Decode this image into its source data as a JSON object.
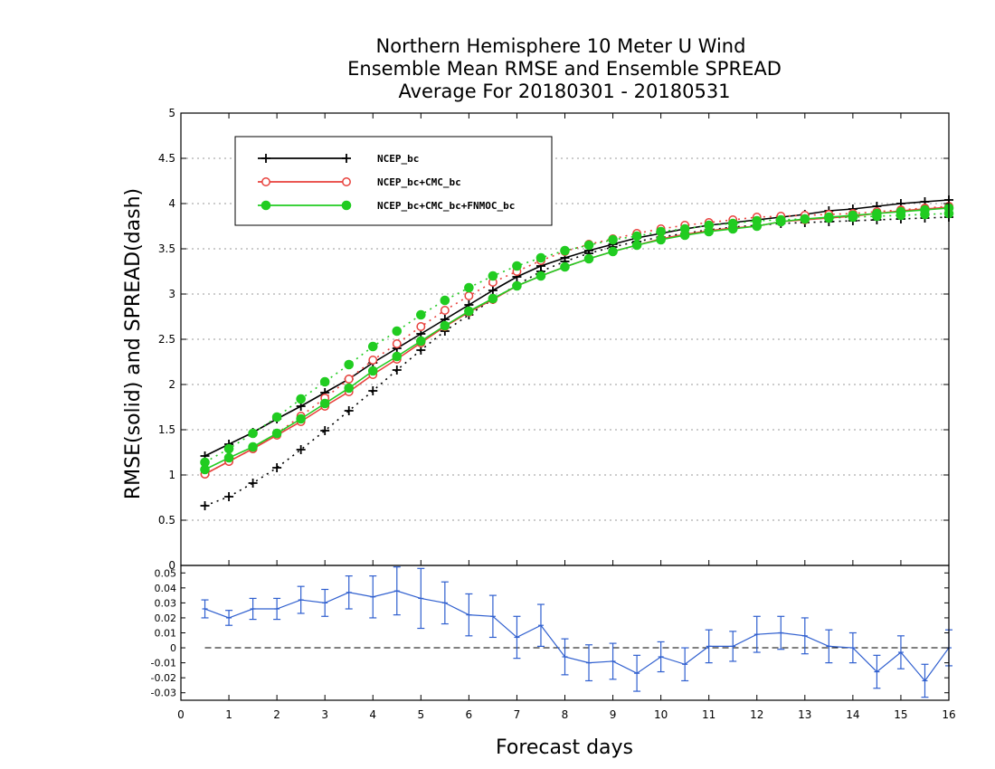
{
  "chart_data": [
    {
      "type": "line",
      "title": [
        "Northern Hemisphere 10 Meter U Wind",
        "Ensemble Mean RMSE and Ensemble SPREAD",
        "Average For 20180301 - 20180531"
      ],
      "ylabel": "RMSE(solid) and SPREAD(dash)",
      "xlabel": "Forecast days",
      "xlim": [
        0,
        16
      ],
      "ylim": [
        0,
        5
      ],
      "xticks": [
        "0",
        "1",
        "2",
        "3",
        "4",
        "5",
        "6",
        "7",
        "8",
        "9",
        "10",
        "11",
        "12",
        "13",
        "14",
        "15",
        "16"
      ],
      "yticks": [
        "0",
        "0.5",
        "1",
        "1.5",
        "2",
        "2.5",
        "3",
        "3.5",
        "4",
        "4.5",
        "5"
      ],
      "grid": true,
      "legend_position": "top-left",
      "x": [
        0.5,
        1,
        1.5,
        2,
        2.5,
        3,
        3.5,
        4,
        4.5,
        5,
        5.5,
        6,
        6.5,
        7,
        7.5,
        8,
        8.5,
        9,
        9.5,
        10,
        10.5,
        11,
        11.5,
        12,
        12.5,
        13,
        13.5,
        14,
        14.5,
        15,
        15.5,
        16
      ],
      "series": [
        {
          "name": "NCEP_bc",
          "color": "#000000",
          "marker": "plus",
          "rmse": [
            1.21,
            1.34,
            1.47,
            1.62,
            1.76,
            1.91,
            2.06,
            2.24,
            2.4,
            2.56,
            2.72,
            2.88,
            3.04,
            3.19,
            3.31,
            3.4,
            3.48,
            3.55,
            3.62,
            3.67,
            3.72,
            3.76,
            3.79,
            3.82,
            3.85,
            3.88,
            3.92,
            3.94,
            3.97,
            4.0,
            4.02,
            4.04
          ],
          "spread": [
            0.66,
            0.76,
            0.91,
            1.08,
            1.28,
            1.49,
            1.71,
            1.93,
            2.16,
            2.38,
            2.59,
            2.77,
            2.94,
            3.1,
            3.25,
            3.36,
            3.45,
            3.52,
            3.58,
            3.63,
            3.67,
            3.71,
            3.74,
            3.76,
            3.78,
            3.79,
            3.8,
            3.81,
            3.82,
            3.83,
            3.84,
            3.85
          ]
        },
        {
          "name": "NCEP_bc+CMC_bc",
          "color": "#e8413c",
          "marker": "circle-open",
          "rmse": [
            1.01,
            1.15,
            1.29,
            1.44,
            1.59,
            1.76,
            1.92,
            2.11,
            2.28,
            2.46,
            2.64,
            2.8,
            2.94,
            3.09,
            3.2,
            3.3,
            3.39,
            3.47,
            3.54,
            3.61,
            3.66,
            3.7,
            3.73,
            3.75,
            3.8,
            3.82,
            3.84,
            3.86,
            3.89,
            3.92,
            3.94,
            3.96
          ],
          "spread": [
            1.01,
            1.15,
            1.29,
            1.46,
            1.65,
            1.85,
            2.06,
            2.27,
            2.45,
            2.64,
            2.82,
            2.98,
            3.13,
            3.25,
            3.37,
            3.47,
            3.55,
            3.61,
            3.67,
            3.72,
            3.76,
            3.79,
            3.82,
            3.85,
            3.86,
            3.87,
            3.88,
            3.89,
            3.91,
            3.93,
            3.95,
            3.97
          ]
        },
        {
          "name": "NCEP_bc+CMC_bc+FNMOC_bc",
          "color": "#21cc21",
          "marker": "circle-filled",
          "rmse": [
            1.06,
            1.19,
            1.31,
            1.46,
            1.62,
            1.79,
            1.96,
            2.15,
            2.31,
            2.48,
            2.65,
            2.81,
            2.95,
            3.09,
            3.2,
            3.3,
            3.39,
            3.47,
            3.54,
            3.6,
            3.65,
            3.69,
            3.72,
            3.75,
            3.8,
            3.83,
            3.85,
            3.87,
            3.89,
            3.91,
            3.93,
            3.95
          ],
          "spread": [
            1.14,
            1.29,
            1.46,
            1.64,
            1.84,
            2.03,
            2.22,
            2.42,
            2.59,
            2.77,
            2.93,
            3.07,
            3.2,
            3.31,
            3.4,
            3.48,
            3.54,
            3.6,
            3.64,
            3.69,
            3.72,
            3.76,
            3.78,
            3.81,
            3.82,
            3.83,
            3.84,
            3.85,
            3.86,
            3.87,
            3.88,
            3.89
          ]
        }
      ]
    },
    {
      "type": "line",
      "subtype": "difference-with-errorbars",
      "xlim": [
        0,
        16
      ],
      "ylim": [
        -0.035,
        0.055
      ],
      "yticks": [
        "-0.03",
        "-0.02",
        "-0.01",
        "0",
        "0.01",
        "0.02",
        "0.03",
        "0.04",
        "0.05"
      ],
      "zero_line": true,
      "color": "#2f5fcf",
      "x": [
        0.5,
        1,
        1.5,
        2,
        2.5,
        3,
        3.5,
        4,
        4.5,
        5,
        5.5,
        6,
        6.5,
        7,
        7.5,
        8,
        8.5,
        9,
        9.5,
        10,
        10.5,
        11,
        11.5,
        12,
        12.5,
        13,
        13.5,
        14,
        14.5,
        15,
        15.5,
        16
      ],
      "values": [
        0.026,
        0.02,
        0.026,
        0.026,
        0.032,
        0.03,
        0.037,
        0.034,
        0.038,
        0.033,
        0.03,
        0.022,
        0.021,
        0.007,
        0.015,
        -0.006,
        -0.01,
        -0.009,
        -0.017,
        -0.006,
        -0.011,
        0.001,
        0.001,
        0.009,
        0.01,
        0.008,
        0.001,
        0.0,
        -0.016,
        -0.003,
        -0.022,
        0.0
      ],
      "errors": [
        0.006,
        0.005,
        0.007,
        0.007,
        0.009,
        0.009,
        0.011,
        0.014,
        0.016,
        0.02,
        0.014,
        0.014,
        0.014,
        0.014,
        0.014,
        0.012,
        0.012,
        0.012,
        0.012,
        0.01,
        0.011,
        0.011,
        0.01,
        0.012,
        0.011,
        0.012,
        0.011,
        0.01,
        0.011,
        0.011,
        0.011,
        0.012
      ]
    }
  ]
}
